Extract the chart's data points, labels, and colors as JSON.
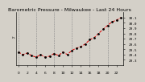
{
  "title": "Barometric Pressure - Milwaukee - Last 24 Hours",
  "hours": [
    0,
    1,
    2,
    3,
    4,
    5,
    6,
    7,
    8,
    9,
    10,
    11,
    12,
    13,
    14,
    15,
    16,
    17,
    18,
    19,
    20,
    21,
    22,
    23
  ],
  "pressure": [
    29.45,
    29.4,
    29.43,
    29.38,
    29.35,
    29.4,
    29.35,
    29.37,
    29.42,
    29.38,
    29.45,
    29.4,
    29.48,
    29.52,
    29.55,
    29.6,
    29.68,
    29.72,
    29.8,
    29.88,
    29.95,
    30.02,
    30.05,
    30.1
  ],
  "ylim": [
    29.2,
    30.2
  ],
  "ytick_vals": [
    29.3,
    29.4,
    29.5,
    29.6,
    29.7,
    29.8,
    29.9,
    30.0,
    30.1
  ],
  "line_color": "#dd0000",
  "marker_color": "#000000",
  "bg_color": "#d4d0c8",
  "plot_bg_color": "#d4d0c8",
  "grid_color": "#888888",
  "title_color": "#000000",
  "title_fontsize": 4.5,
  "tick_fontsize": 3.2,
  "xtick_every": 2,
  "vgrid_every": 4
}
